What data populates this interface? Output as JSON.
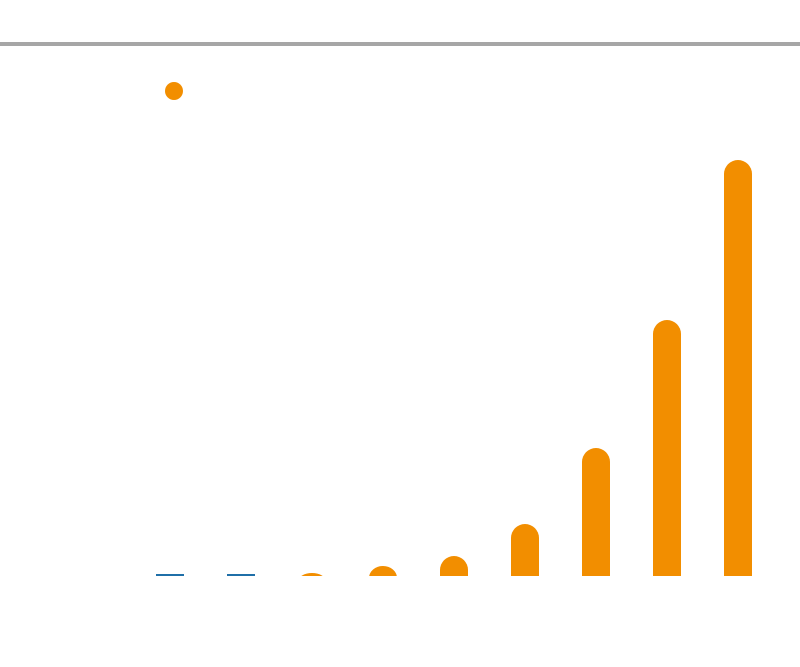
{
  "chart_data": {
    "type": "bar",
    "values": [
      0,
      0,
      3,
      10,
      20,
      52,
      128,
      256,
      416
    ],
    "colors": [
      "#1f6fa8",
      "#1f6fa8",
      "#f28e00",
      "#f28e00",
      "#f28e00",
      "#f28e00",
      "#f28e00",
      "#f28e00",
      "#f28e00"
    ],
    "ylim": [
      0,
      416
    ],
    "legend_color": "#f28e00"
  }
}
